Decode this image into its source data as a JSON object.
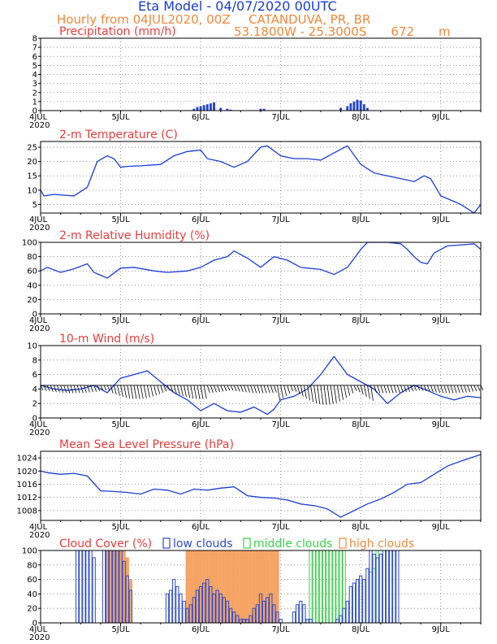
{
  "header": {
    "title": "Eta Model - 04/07/2020 00UTC",
    "subtitle": "Hourly from 04JUL2020, 00Z",
    "location": "CATANDUVA, PR, BR",
    "coords": "53.1800W - 25.3000S",
    "elevation": "672",
    "elevation_unit": "m"
  },
  "x_axis": {
    "day_labels": [
      "4JUL",
      "5JUL",
      "6JUL",
      "7JUL",
      "8JUL",
      "9JUL"
    ],
    "year_label": "2020",
    "hours_total": 132
  },
  "chart_data": [
    {
      "type": "bar",
      "title": "Precipitation (mm/h)",
      "ylim": [
        0,
        8
      ],
      "yticks": [
        0,
        1,
        2,
        3,
        4,
        5,
        6,
        7,
        8
      ],
      "x": [
        46,
        47,
        48,
        49,
        50,
        51,
        52,
        54,
        56,
        57,
        66,
        67,
        90,
        92,
        93,
        94,
        95,
        96,
        97,
        98
      ],
      "values": [
        0.2,
        0.4,
        0.5,
        0.6,
        0.7,
        0.8,
        0.9,
        0.3,
        0.2,
        0.1,
        0.2,
        0.2,
        0.3,
        0.5,
        0.8,
        1.0,
        1.2,
        1.1,
        0.7,
        0.3
      ]
    },
    {
      "type": "line",
      "title": "2-m Temperature (C)",
      "ylim": [
        2,
        27
      ],
      "yticks": [
        5,
        10,
        15,
        20,
        25
      ],
      "x": [
        0,
        1,
        4,
        10,
        14,
        17,
        20,
        22,
        24,
        26,
        30,
        36,
        40,
        44,
        48,
        50,
        54,
        58,
        62,
        66,
        68,
        72,
        76,
        80,
        84,
        88,
        92,
        96,
        100,
        104,
        108,
        112,
        115,
        117,
        120,
        124,
        126,
        128,
        130,
        132
      ],
      "values": [
        10,
        8,
        8.5,
        8,
        11,
        20,
        22,
        21,
        18,
        18.3,
        18.5,
        19,
        22,
        23.5,
        24,
        21,
        20,
        18,
        20,
        25,
        25.5,
        22,
        21,
        21,
        20.5,
        23,
        25.5,
        19,
        16,
        15,
        14,
        13,
        15,
        14,
        8,
        6,
        5,
        3.5,
        2,
        5
      ]
    },
    {
      "type": "line",
      "title": "2-m Relative Humidity (%)",
      "ylim": [
        0,
        100
      ],
      "yticks": [
        0,
        20,
        40,
        60,
        80,
        100
      ],
      "x": [
        0,
        2,
        6,
        10,
        14,
        16,
        20,
        24,
        28,
        34,
        38,
        44,
        48,
        52,
        56,
        58,
        62,
        66,
        70,
        74,
        78,
        84,
        88,
        92,
        96,
        98,
        104,
        108,
        110,
        112,
        114,
        116,
        118,
        122,
        128,
        130,
        132
      ],
      "values": [
        60,
        65,
        58,
        63,
        70,
        58,
        50,
        64,
        65,
        60,
        58,
        60,
        65,
        75,
        80,
        88,
        78,
        65,
        80,
        75,
        65,
        62,
        55,
        65,
        90,
        100,
        100,
        98,
        90,
        80,
        72,
        70,
        85,
        95,
        97,
        98,
        90
      ]
    },
    {
      "type": "line",
      "title": "10-m Wind (m/s)",
      "ylim": [
        0,
        10
      ],
      "yticks": [
        0,
        2,
        4,
        6,
        8,
        10
      ],
      "x": [
        0,
        4,
        8,
        12,
        16,
        20,
        24,
        28,
        32,
        36,
        40,
        44,
        48,
        52,
        56,
        60,
        64,
        68,
        70,
        72,
        76,
        80,
        84,
        88,
        92,
        96,
        100,
        104,
        108,
        112,
        116,
        120,
        124,
        128,
        132
      ],
      "values": [
        4.5,
        4,
        3.8,
        4,
        4.5,
        3.5,
        5.5,
        6,
        6.5,
        5,
        3.5,
        2.5,
        1,
        2,
        1,
        0.8,
        1.5,
        0.5,
        1.2,
        2.5,
        3,
        4,
        6,
        8.5,
        6,
        5,
        4,
        2,
        3.5,
        4.5,
        3.8,
        3,
        2.5,
        3,
        2.8
      ]
    },
    {
      "type": "line",
      "title": "Mean Sea Level Pressure (hPa)",
      "ylim": [
        1005,
        1026
      ],
      "yticks": [
        1008,
        1012,
        1016,
        1020,
        1024
      ],
      "x": [
        0,
        2,
        6,
        10,
        14,
        18,
        22,
        26,
        30,
        34,
        38,
        42,
        46,
        50,
        54,
        58,
        62,
        66,
        70,
        74,
        78,
        82,
        86,
        90,
        94,
        98,
        102,
        106,
        110,
        114,
        118,
        122,
        126,
        132
      ],
      "values": [
        1020,
        1019.5,
        1019,
        1019.3,
        1018.5,
        1014,
        1013.8,
        1013.5,
        1013,
        1014.5,
        1014.2,
        1013,
        1014.5,
        1014.2,
        1014.8,
        1015.2,
        1012.5,
        1012,
        1011.8,
        1011.2,
        1010,
        1009.5,
        1008.5,
        1006,
        1008,
        1010,
        1011.5,
        1013.5,
        1016,
        1016.5,
        1019,
        1021.5,
        1023,
        1025
      ]
    },
    {
      "type": "bar",
      "title": "Cloud Cover (%)",
      "ylim": [
        0,
        100
      ],
      "yticks": [
        0,
        20,
        40,
        60,
        80,
        100
      ],
      "legend": [
        "low clouds",
        "middle clouds",
        "high clouds"
      ],
      "series": [
        {
          "name": "low clouds",
          "x": [
            11,
            12,
            13,
            14,
            15,
            16,
            19,
            20,
            21,
            22,
            23,
            24,
            25,
            26,
            27,
            38,
            39,
            40,
            41,
            42,
            43,
            44,
            45,
            46,
            47,
            48,
            49,
            50,
            51,
            52,
            53,
            54,
            55,
            56,
            57,
            58,
            59,
            60,
            61,
            62,
            63,
            64,
            65,
            66,
            67,
            68,
            69,
            70,
            71,
            72,
            76,
            77,
            78,
            79,
            80,
            81,
            89,
            90,
            91,
            92,
            93,
            94,
            95,
            96,
            97,
            98,
            99,
            100,
            101,
            102,
            103,
            104,
            105,
            106,
            107
          ],
          "values": [
            100,
            100,
            100,
            100,
            100,
            90,
            100,
            100,
            100,
            100,
            100,
            100,
            85,
            65,
            45,
            40,
            45,
            60,
            50,
            40,
            30,
            20,
            25,
            35,
            45,
            50,
            55,
            60,
            50,
            40,
            45,
            40,
            35,
            30,
            20,
            15,
            10,
            5,
            5,
            5,
            10,
            20,
            25,
            40,
            30,
            35,
            40,
            25,
            15,
            5,
            15,
            25,
            30,
            25,
            5,
            5,
            5,
            10,
            20,
            30,
            50,
            55,
            60,
            65,
            60,
            75,
            100,
            95,
            90,
            95,
            100,
            100,
            100,
            100,
            100
          ]
        },
        {
          "name": "middle clouds",
          "x": [
            81,
            82,
            83,
            84,
            85,
            86,
            87,
            88,
            89,
            90,
            91,
            99,
            100,
            101
          ],
          "values": [
            100,
            100,
            100,
            100,
            100,
            100,
            100,
            100,
            100,
            100,
            100,
            70,
            75,
            100
          ]
        },
        {
          "name": "high clouds",
          "x": [
            20,
            21,
            22,
            23,
            24,
            25,
            26,
            27,
            44,
            45,
            46,
            47,
            48,
            49,
            50,
            51,
            52,
            53,
            54,
            55,
            56,
            57,
            58,
            59,
            60,
            61,
            62,
            63,
            64,
            65,
            66,
            67,
            68,
            69,
            70,
            71
          ],
          "values": [
            100,
            100,
            100,
            100,
            100,
            100,
            90,
            60,
            100,
            100,
            100,
            100,
            100,
            100,
            100,
            100,
            100,
            100,
            100,
            100,
            100,
            100,
            100,
            100,
            100,
            100,
            100,
            100,
            100,
            100,
            100,
            100,
            100,
            100,
            100,
            100
          ]
        }
      ]
    }
  ],
  "colors": {
    "series": "#1a3cd8",
    "title": "#e83c3c",
    "header_orange": "#f0883a",
    "bar": "#2244cc",
    "low": "#2a4bd4",
    "middle": "#3ad24a",
    "high": "#f5a465",
    "barbs": "#000000"
  }
}
